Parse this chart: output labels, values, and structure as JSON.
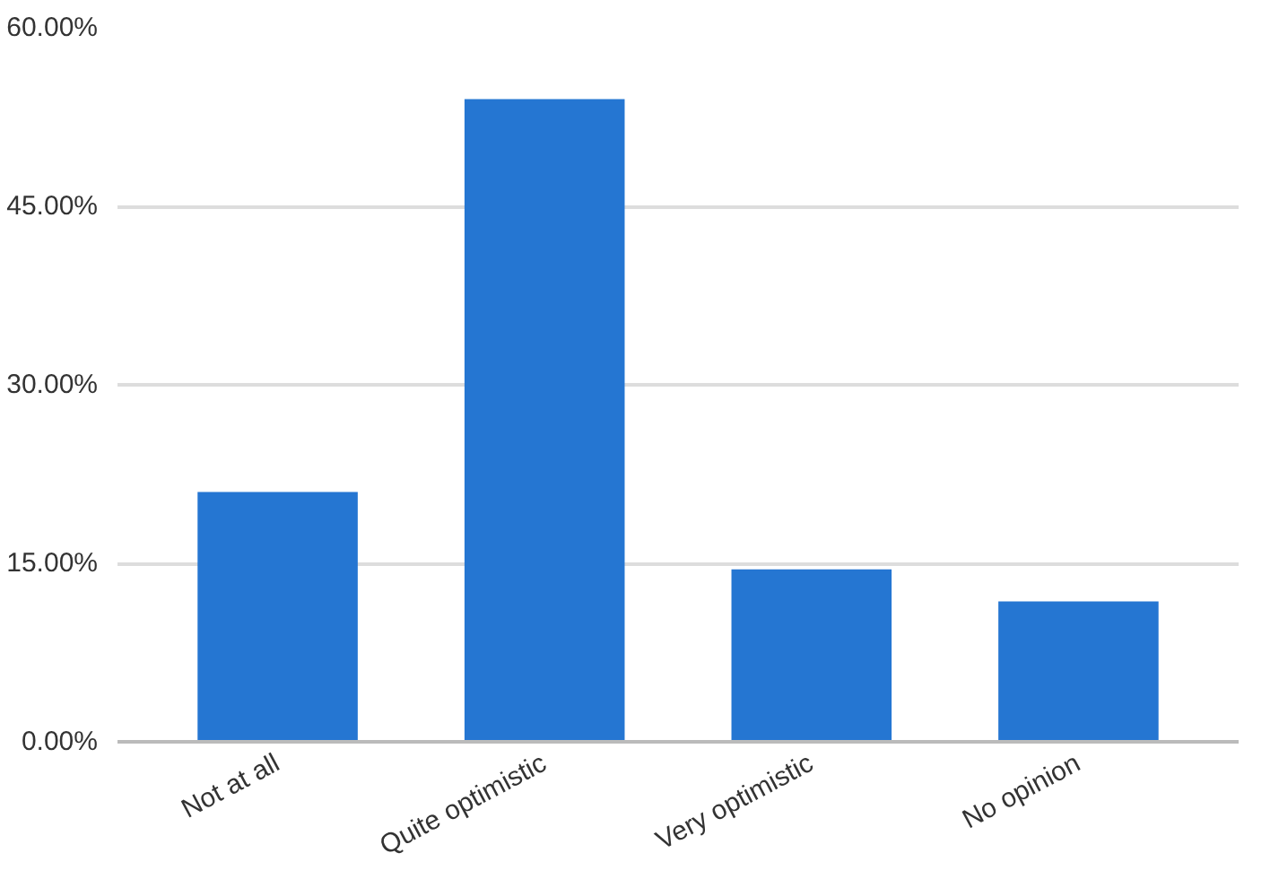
{
  "chart_data": {
    "type": "bar",
    "categories": [
      "Not at all",
      "Quite optimistic",
      "Very optimistic",
      "No opinion"
    ],
    "values": [
      21,
      54,
      14.5,
      11.8
    ],
    "color": "#2576d2",
    "ylim": [
      0,
      60
    ],
    "yticks": [
      {
        "value": 0,
        "label": "0.00%"
      },
      {
        "value": 15,
        "label": "15.00%"
      },
      {
        "value": 30,
        "label": "30.00%"
      },
      {
        "value": 45,
        "label": "45.00%"
      },
      {
        "value": 60,
        "label": "60.00%"
      }
    ],
    "grid": "y"
  }
}
